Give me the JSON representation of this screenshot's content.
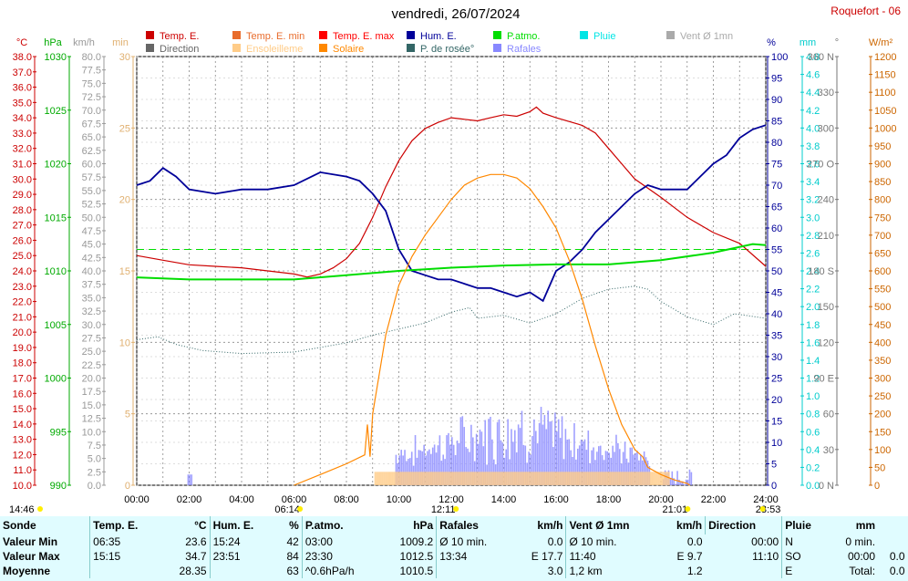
{
  "title": "vendredi, 26/07/2024",
  "station": "Roquefort - 06",
  "colors": {
    "temp": "#cc0000",
    "temp_min": "#e86c2c",
    "temp_max": "#ff0000",
    "hum": "#000099",
    "patm": "#00dd00",
    "pluie": "#00e5e5",
    "vent": "#aaaaaa",
    "direction": "#666666",
    "ensoleillement": "#ffcc88",
    "solaire": "#ff8800",
    "rosee": "#336666",
    "rafales": "#8888ff"
  },
  "legend": [
    {
      "label": "Temp. E.",
      "color": "#cc0000"
    },
    {
      "label": "Temp. E. min",
      "color": "#e86c2c"
    },
    {
      "label": "Temp. E. max",
      "color": "#ff0000"
    },
    {
      "label": "Hum. E.",
      "color": "#000099"
    },
    {
      "label": "P.atmo.",
      "color": "#00dd00"
    },
    {
      "label": "Pluie",
      "color": "#00e5e5"
    },
    {
      "label": "Vent Ø 1mn",
      "color": "#aaaaaa"
    },
    {
      "label": "Direction",
      "color": "#666666"
    },
    {
      "label": "Ensoleilleme",
      "color": "#ffcc88"
    },
    {
      "label": "Solaire",
      "color": "#ff8800"
    },
    {
      "label": "P. de rosée°",
      "color": "#336666"
    },
    {
      "label": "Rafales",
      "color": "#8888ff"
    }
  ],
  "chart_data": {
    "type": "line",
    "x_ticks": [
      "00:00",
      "02:00",
      "04:00",
      "06:00",
      "08:00",
      "10:00",
      "12:00",
      "14:00",
      "16:00",
      "18:00",
      "20:00",
      "22:00",
      "24:00"
    ],
    "axes": {
      "temp": {
        "unit": "°C",
        "min": 10,
        "max": 38,
        "step": 1
      },
      "patm": {
        "unit": "hPa",
        "min": 990,
        "max": 1030,
        "step": 5
      },
      "vent": {
        "unit": "km/h",
        "min": 0,
        "max": 80,
        "step": 2.5
      },
      "min": {
        "unit": "min",
        "min": 0,
        "max": 30,
        "step": 5
      },
      "hum": {
        "unit": "%",
        "min": 0,
        "max": 100,
        "step": 5
      },
      "pluie": {
        "unit": "mm",
        "min": 0,
        "max": 4.8,
        "step": 0.2
      },
      "dir": {
        "unit": "°",
        "min": 0,
        "max": 360,
        "labels": [
          "0 N",
          "30",
          "60",
          "90 E",
          "120",
          "150",
          "180 S",
          "210",
          "240",
          "270 O",
          "300",
          "330",
          "360 N"
        ]
      },
      "solar": {
        "unit": "W/m²",
        "min": 0,
        "max": 1200,
        "step": 50
      }
    },
    "series": [
      {
        "name": "Temp. E.",
        "axis": "temp",
        "points": [
          [
            0,
            25.0
          ],
          [
            1,
            24.7
          ],
          [
            2,
            24.4
          ],
          [
            3,
            24.3
          ],
          [
            4,
            24.2
          ],
          [
            5,
            24.0
          ],
          [
            6,
            23.8
          ],
          [
            6.5,
            23.6
          ],
          [
            7,
            23.8
          ],
          [
            7.5,
            24.2
          ],
          [
            8,
            24.8
          ],
          [
            8.5,
            25.8
          ],
          [
            9,
            27.5
          ],
          [
            9.5,
            29.5
          ],
          [
            10,
            31.2
          ],
          [
            10.5,
            32.5
          ],
          [
            11,
            33.3
          ],
          [
            11.5,
            33.7
          ],
          [
            12,
            34.0
          ],
          [
            12.5,
            33.9
          ],
          [
            13,
            33.8
          ],
          [
            13.5,
            34.0
          ],
          [
            14,
            34.2
          ],
          [
            14.5,
            34.1
          ],
          [
            15,
            34.4
          ],
          [
            15.25,
            34.7
          ],
          [
            15.5,
            34.3
          ],
          [
            16,
            34.0
          ],
          [
            17,
            33.5
          ],
          [
            17.5,
            33.0
          ],
          [
            18,
            32.0
          ],
          [
            18.5,
            31.0
          ],
          [
            19,
            30.0
          ],
          [
            20,
            28.8
          ],
          [
            21,
            27.5
          ],
          [
            22,
            26.5
          ],
          [
            23,
            25.8
          ],
          [
            24,
            24.3
          ]
        ]
      },
      {
        "name": "Hum. E.",
        "axis": "hum",
        "points": [
          [
            0,
            70
          ],
          [
            0.5,
            71
          ],
          [
            1,
            74
          ],
          [
            1.5,
            72
          ],
          [
            2,
            69
          ],
          [
            3,
            68
          ],
          [
            4,
            69
          ],
          [
            5,
            69
          ],
          [
            6,
            70
          ],
          [
            7,
            73
          ],
          [
            8,
            72
          ],
          [
            8.5,
            71
          ],
          [
            9,
            68
          ],
          [
            9.5,
            64
          ],
          [
            10,
            55
          ],
          [
            10.5,
            50
          ],
          [
            11,
            49
          ],
          [
            11.5,
            48
          ],
          [
            12,
            48
          ],
          [
            12.5,
            47
          ],
          [
            13,
            46
          ],
          [
            13.5,
            46
          ],
          [
            14,
            45
          ],
          [
            14.5,
            44
          ],
          [
            15,
            45
          ],
          [
            15.5,
            43
          ],
          [
            16,
            50
          ],
          [
            16.5,
            52
          ],
          [
            17,
            55
          ],
          [
            17.5,
            59
          ],
          [
            18,
            62
          ],
          [
            18.5,
            65
          ],
          [
            19,
            68
          ],
          [
            19.5,
            70
          ],
          [
            20,
            69
          ],
          [
            21,
            69
          ],
          [
            21.5,
            72
          ],
          [
            22,
            75
          ],
          [
            22.5,
            77
          ],
          [
            23,
            81
          ],
          [
            23.5,
            83
          ],
          [
            24,
            84
          ]
        ]
      },
      {
        "name": "P.atmo.",
        "axis": "patm",
        "points": [
          [
            0,
            1009.4
          ],
          [
            2,
            1009.2
          ],
          [
            4,
            1009.2
          ],
          [
            6,
            1009.2
          ],
          [
            8,
            1009.6
          ],
          [
            10,
            1010.0
          ],
          [
            12,
            1010.3
          ],
          [
            14,
            1010.5
          ],
          [
            16,
            1010.6
          ],
          [
            18,
            1010.6
          ],
          [
            20,
            1011.0
          ],
          [
            22,
            1011.7
          ],
          [
            23.5,
            1012.5
          ],
          [
            24,
            1012.4
          ]
        ]
      },
      {
        "name": "P. de rosée°",
        "axis": "temp",
        "points": [
          [
            0,
            19.5
          ],
          [
            0.8,
            19.7
          ],
          [
            1.5,
            19.2
          ],
          [
            2.5,
            18.8
          ],
          [
            4,
            18.6
          ],
          [
            6,
            18.7
          ],
          [
            7,
            19.0
          ],
          [
            8,
            19.3
          ],
          [
            9,
            19.8
          ],
          [
            10,
            20.2
          ],
          [
            11,
            20.6
          ],
          [
            12,
            21.3
          ],
          [
            12.7,
            21.6
          ],
          [
            13,
            20.9
          ],
          [
            14,
            21.1
          ],
          [
            15,
            20.6
          ],
          [
            16,
            21.2
          ],
          [
            17,
            22.2
          ],
          [
            18,
            22.8
          ],
          [
            19,
            23.0
          ],
          [
            19.5,
            22.8
          ],
          [
            20,
            22.0
          ],
          [
            21,
            21.0
          ],
          [
            22,
            20.5
          ],
          [
            22.8,
            21.2
          ],
          [
            24,
            20.9
          ]
        ]
      },
      {
        "name": "Solaire",
        "axis": "solar",
        "points": [
          [
            6,
            0
          ],
          [
            7,
            30
          ],
          [
            8,
            60
          ],
          [
            8.7,
            85
          ],
          [
            8.8,
            170
          ],
          [
            8.9,
            80
          ],
          [
            9,
            200
          ],
          [
            9.5,
            420
          ],
          [
            10,
            560
          ],
          [
            10.5,
            640
          ],
          [
            11,
            700
          ],
          [
            11.5,
            750
          ],
          [
            12,
            800
          ],
          [
            12.5,
            840
          ],
          [
            13,
            860
          ],
          [
            13.5,
            870
          ],
          [
            14,
            870
          ],
          [
            14.5,
            860
          ],
          [
            15,
            830
          ],
          [
            15.5,
            780
          ],
          [
            16,
            720
          ],
          [
            16.5,
            630
          ],
          [
            17,
            520
          ],
          [
            17.5,
            390
          ],
          [
            18,
            270
          ],
          [
            18.5,
            170
          ],
          [
            19,
            100
          ],
          [
            19.3,
            80
          ],
          [
            19.5,
            50
          ],
          [
            20,
            30
          ],
          [
            20.5,
            15
          ],
          [
            21,
            5
          ],
          [
            21.1,
            0
          ]
        ]
      }
    ],
    "reference_lines": [
      {
        "name": "P.atmo. moyenne",
        "axis": "patm",
        "value": 1012.0
      }
    ]
  },
  "sun": {
    "rise": "06:14",
    "set": "21:01",
    "noon": "12:11",
    "moon_set": "14:46",
    "moon_rise": "23:53"
  },
  "table": {
    "headers": [
      "Sonde",
      "Temp. E.",
      "°C",
      "Hum. E.",
      "%",
      "P.atmo.",
      "hPa",
      "Rafales",
      "km/h",
      "Vent Ø 1mn",
      "km/h",
      "Direction",
      "Pluie",
      "mm"
    ],
    "rows": [
      {
        "label": "Valeur Min",
        "cells": [
          "06:35",
          "23.6",
          "15:24",
          "42",
          "03:00",
          "1009.2",
          "Ø 10 min.",
          "0.0",
          "Ø 10 min.",
          "0.0",
          "00:00",
          "N",
          "0 min.",
          ""
        ]
      },
      {
        "label": "Valeur Max",
        "cells": [
          "15:15",
          "34.7",
          "23:51",
          "84",
          "23:30",
          "1012.5",
          "13:34",
          "E 17.7",
          "11:40",
          "E 9.7",
          "11:10",
          "SO",
          "00:00",
          "0.0"
        ]
      },
      {
        "label": "Moyenne",
        "cells": [
          "",
          "28.35",
          "",
          "63",
          "^0.6hPa/h",
          "1010.5",
          "",
          "3.0",
          "1,2 km",
          "1.2",
          "",
          "E",
          "Total:",
          "0.0"
        ]
      }
    ]
  }
}
